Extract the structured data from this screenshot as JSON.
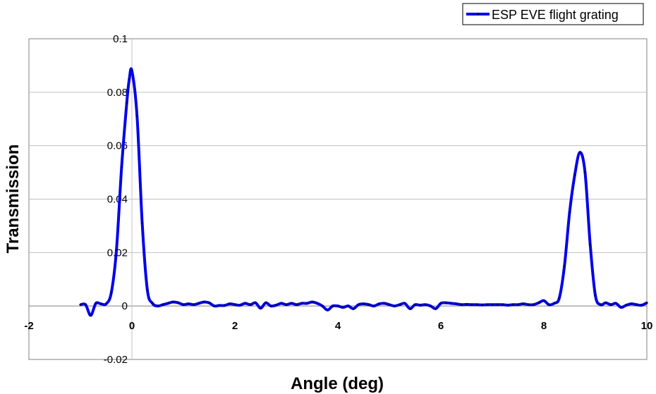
{
  "chart_data": {
    "type": "line",
    "title": "",
    "xlabel": "Angle (deg)",
    "ylabel": "Transmission",
    "xlim": [
      -2,
      10
    ],
    "ylim": [
      -0.02,
      0.1
    ],
    "x_ticks": [
      -2,
      0,
      2,
      4,
      6,
      8,
      10
    ],
    "x_tick_labels": [
      "-2",
      "0",
      "2",
      "4",
      "6",
      "8",
      "10"
    ],
    "y_ticks": [
      -0.02,
      0,
      0.02,
      0.04,
      0.06,
      0.08,
      0.1
    ],
    "y_tick_labels": [
      "-0.02",
      "0",
      "0.02",
      "0.04",
      "0.06",
      "0.08",
      "0.1"
    ],
    "grid": "horizontal",
    "legend_position": "top-right",
    "colors": {
      "series": "#0000ee",
      "marker": "#000066",
      "grid": "#c0c0c0",
      "frame": "#808080"
    },
    "series": [
      {
        "name": "ESP EVE flight grating",
        "x": [
          -1.0,
          -0.9,
          -0.8,
          -0.7,
          -0.6,
          -0.5,
          -0.4,
          -0.3,
          -0.2,
          -0.1,
          -0.05,
          0.0,
          0.1,
          0.2,
          0.3,
          0.4,
          0.5,
          0.6,
          0.7,
          0.8,
          0.9,
          1.0,
          1.1,
          1.2,
          1.3,
          1.4,
          1.5,
          1.6,
          1.7,
          1.8,
          1.9,
          2.0,
          2.1,
          2.2,
          2.3,
          2.4,
          2.5,
          2.6,
          2.7,
          2.8,
          2.9,
          3.0,
          3.1,
          3.2,
          3.3,
          3.4,
          3.5,
          3.6,
          3.7,
          3.8,
          3.9,
          4.0,
          4.1,
          4.2,
          4.3,
          4.4,
          4.5,
          4.6,
          4.7,
          4.8,
          4.9,
          5.0,
          5.1,
          5.2,
          5.3,
          5.4,
          5.5,
          5.6,
          5.7,
          5.8,
          5.9,
          6.0,
          6.1,
          6.2,
          6.3,
          6.4,
          6.5,
          6.6,
          6.7,
          6.8,
          6.9,
          7.0,
          7.1,
          7.2,
          7.3,
          7.4,
          7.5,
          7.6,
          7.7,
          7.8,
          7.9,
          8.0,
          8.1,
          8.2,
          8.3,
          8.4,
          8.5,
          8.6,
          8.7,
          8.8,
          8.9,
          9.0,
          9.1,
          9.2,
          9.3,
          9.4,
          9.5,
          9.6,
          9.7,
          9.8,
          9.9,
          10.0
        ],
        "values": [
          0.0005,
          0.0005,
          -0.0035,
          0.001,
          0.0008,
          0.0008,
          0.005,
          0.021,
          0.052,
          0.076,
          0.085,
          0.088,
          0.071,
          0.031,
          0.006,
          0.001,
          0.0,
          0.0005,
          0.001,
          0.0015,
          0.0012,
          0.0005,
          0.0008,
          0.0005,
          0.001,
          0.0015,
          0.0012,
          0.0,
          0.0002,
          0.0002,
          0.0008,
          0.0005,
          0.0003,
          0.001,
          0.0005,
          0.0012,
          -0.0008,
          0.0012,
          0.0,
          0.0003,
          0.001,
          0.0005,
          0.001,
          0.0005,
          0.001,
          0.001,
          0.0015,
          0.001,
          0.0,
          -0.0015,
          0.0,
          0.0,
          -0.0005,
          0.0,
          -0.001,
          0.0005,
          0.0008,
          0.0005,
          0.0,
          0.0008,
          0.001,
          0.0005,
          0.0,
          0.0005,
          0.001,
          -0.001,
          0.0005,
          0.0003,
          0.0005,
          0.0,
          -0.001,
          0.001,
          0.0012,
          0.001,
          0.0008,
          0.0005,
          0.0006,
          0.0005,
          0.0005,
          0.0004,
          0.0005,
          0.0005,
          0.0005,
          0.0005,
          0.0003,
          0.0005,
          0.0005,
          0.0008,
          0.0005,
          0.0005,
          0.0012,
          0.002,
          0.0005,
          0.001,
          0.003,
          0.015,
          0.035,
          0.049,
          0.0575,
          0.05,
          0.023,
          0.004,
          0.0005,
          0.0012,
          0.0005,
          0.001,
          -0.0005,
          0.0003,
          0.0008,
          0.0005,
          0.0003,
          0.0012
        ]
      }
    ]
  }
}
